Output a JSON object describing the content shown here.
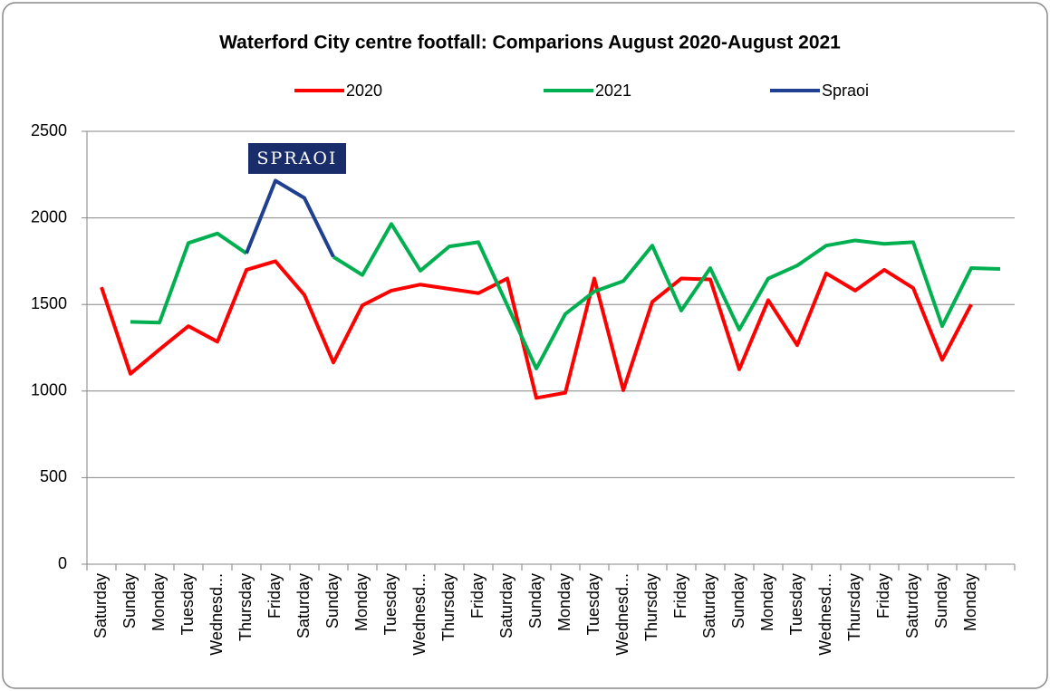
{
  "chart_data": {
    "type": "line",
    "title": "Waterford City centre footfall: Comparions August 2020-August 2021",
    "annotation": "SPRAOI",
    "categories": [
      "Saturday",
      "Sunday",
      "Monday",
      "Tuesday",
      "Wednesd...",
      "Thursday",
      "Friday",
      "Saturday",
      "Sunday",
      "Monday",
      "Tuesday",
      "Wednesd...",
      "Thursday",
      "Friday",
      "Saturday",
      "Sunday",
      "Monday",
      "Tuesday",
      "Wednesd...",
      "Thursday",
      "Friday",
      "Saturday",
      "Sunday",
      "Monday",
      "Tuesday",
      "Wednesd...",
      "Thursday",
      "Friday",
      "Saturday",
      "Sunday",
      "Monday",
      null
    ],
    "series": [
      {
        "name": "2020",
        "color": "#ff0000",
        "values": [
          1600,
          1100,
          1240,
          1375,
          1285,
          1700,
          1750,
          1555,
          1165,
          1495,
          1580,
          1615,
          1590,
          1565,
          1650,
          960,
          990,
          1650,
          1005,
          1515,
          1650,
          1645,
          1125,
          1525,
          1265,
          1680,
          1580,
          1700,
          1595,
          1180,
          1500,
          null
        ]
      },
      {
        "name": "2021",
        "color": "#00b050",
        "values": [
          null,
          1400,
          1395,
          1855,
          1910,
          1795,
          null,
          null,
          1775,
          1670,
          1965,
          1695,
          1835,
          1860,
          1495,
          1130,
          1445,
          1575,
          1635,
          1840,
          1465,
          1710,
          1355,
          1650,
          1725,
          1840,
          1870,
          1850,
          1860,
          1375,
          1710,
          1705
        ]
      },
      {
        "name": "Spraoi",
        "color": "#1f3f8f",
        "values": [
          null,
          null,
          null,
          null,
          null,
          1795,
          2215,
          2115,
          1775,
          null,
          null,
          null,
          null,
          null,
          null,
          null,
          null,
          null,
          null,
          null,
          null,
          null,
          null,
          null,
          null,
          null,
          null,
          null,
          null,
          null,
          null,
          null
        ]
      }
    ],
    "ylim": [
      0,
      2500
    ],
    "yticks": [
      0,
      500,
      1000,
      1500,
      2000,
      2500
    ],
    "grid": true,
    "legend": "top"
  }
}
